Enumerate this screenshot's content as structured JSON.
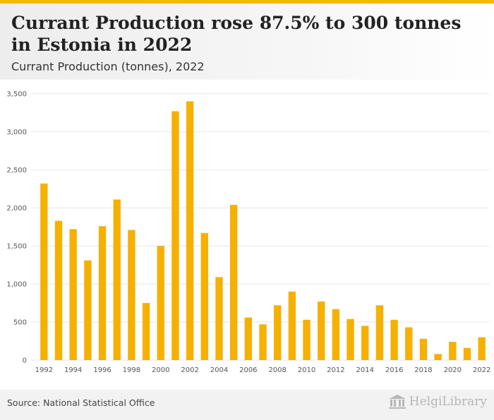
{
  "header": {
    "title": "Currant Production rose 87.5% to 300 tonnes in Estonia in 2022",
    "subtitle": "Currant Production (tonnes), 2022"
  },
  "footer": {
    "source": "Source: National Statistical Office",
    "logo_text": "HelgiLibrary",
    "logo_icon": "library-building-icon"
  },
  "colors": {
    "bar": "#f6b000",
    "accent_bar": "#f6b800",
    "grid": "#e6e6e6",
    "tick_text": "#555555"
  },
  "chart_data": {
    "type": "bar",
    "title": "Currant Production (tonnes), 2022",
    "xlabel": "",
    "ylabel": "",
    "ylim": [
      0,
      3500
    ],
    "yticks": [
      0,
      500,
      1000,
      1500,
      2000,
      2500,
      3000,
      3500
    ],
    "ytick_labels": [
      "0",
      "500",
      "1,000",
      "1,500",
      "2,000",
      "2,500",
      "3,000",
      "3,500"
    ],
    "grid": true,
    "legend": "none",
    "categories": [
      "1992",
      "1993",
      "1994",
      "1995",
      "1996",
      "1997",
      "1998",
      "1999",
      "2000",
      "2001",
      "2002",
      "2003",
      "2004",
      "2005",
      "2006",
      "2007",
      "2008",
      "2009",
      "2010",
      "2011",
      "2012",
      "2013",
      "2014",
      "2015",
      "2016",
      "2017",
      "2018",
      "2019",
      "2020",
      "2021",
      "2022"
    ],
    "xtick_labels": [
      "1992",
      "1994",
      "1996",
      "1998",
      "2000",
      "2002",
      "2004",
      "2006",
      "2008",
      "2010",
      "2012",
      "2014",
      "2016",
      "2018",
      "2020",
      "2022"
    ],
    "values": [
      2320,
      1830,
      1720,
      1310,
      1760,
      2110,
      1710,
      750,
      1500,
      3270,
      3400,
      1670,
      1090,
      2040,
      560,
      470,
      720,
      900,
      530,
      770,
      670,
      540,
      450,
      720,
      530,
      430,
      280,
      80,
      240,
      160,
      300
    ]
  }
}
